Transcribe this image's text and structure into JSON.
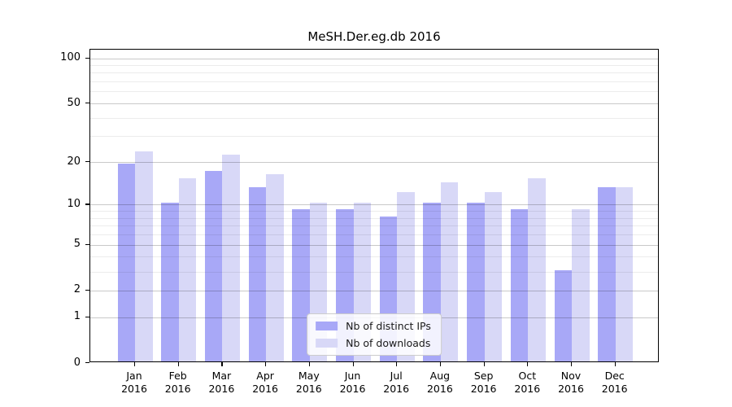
{
  "title": "MeSH.Der.eg.db 2016",
  "chart_data": {
    "type": "bar",
    "title": "MeSH.Der.eg.db 2016",
    "categories": [
      "Jan",
      "Feb",
      "Mar",
      "Apr",
      "May",
      "Jun",
      "Jul",
      "Aug",
      "Sep",
      "Oct",
      "Nov",
      "Dec"
    ],
    "category_year": "2016",
    "series": [
      {
        "name": "Nb of distinct IPs",
        "color": "#a8a8f7",
        "values": [
          19,
          10,
          17,
          13,
          9,
          9,
          8,
          10,
          10,
          9,
          3,
          13
        ]
      },
      {
        "name": "Nb of downloads",
        "color": "#d8d8f7",
        "values": [
          23,
          15,
          22,
          16,
          10,
          10,
          12,
          14,
          12,
          15,
          9,
          13
        ]
      }
    ],
    "xlabel": "",
    "ylabel": "",
    "yscale": "log1p",
    "ylim": [
      0,
      114
    ],
    "y_tick_labels": [
      100,
      50,
      20,
      10,
      5,
      2,
      1,
      0
    ],
    "y_major_gridlines": [
      1,
      2,
      5,
      10,
      20,
      50,
      100
    ],
    "y_minor_gridlines": [
      3,
      4,
      6,
      7,
      8,
      9,
      30,
      40,
      60,
      70,
      80,
      90
    ],
    "grid": true,
    "legend_position": "lower center inside plot"
  },
  "colors": {
    "bar_distinct_ips": "#a8a8f7",
    "bar_downloads": "#d8d8f7",
    "axis": "#000000",
    "major_grid": "#c9c9c9",
    "minor_grid": "#ececec",
    "background": "#ffffff"
  }
}
